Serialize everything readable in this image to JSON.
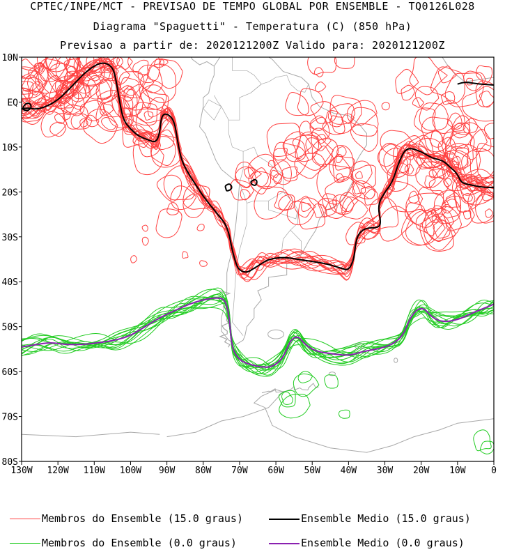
{
  "header": {
    "line1": "CPTEC/INPE/MCT - PREVISAO DE TEMPO GLOBAL POR ENSEMBLE - TQ0126L028",
    "line2": "Diagrama \"Spaguetti\" - Temperatura (C) (850 hPa)",
    "line3": "Previsao a partir de: 2020121200Z  Valido para: 2020121200Z"
  },
  "colors": {
    "members_15": "#ff4040",
    "mean_15": "#000000",
    "members_0": "#22cc22",
    "mean_0": "#8a20b0",
    "coast": "#a8a8a8"
  },
  "chart_data": {
    "type": "line",
    "title": "Diagrama \"Spaguetti\" - Temperatura (C) (850 hPa)",
    "xlim": [
      -130,
      0
    ],
    "ylim": [
      -80,
      10
    ],
    "xticks": [
      {
        "v": -130,
        "label": "130W"
      },
      {
        "v": -120,
        "label": "120W"
      },
      {
        "v": -110,
        "label": "110W"
      },
      {
        "v": -100,
        "label": "100W"
      },
      {
        "v": -90,
        "label": "90W"
      },
      {
        "v": -80,
        "label": "80W"
      },
      {
        "v": -70,
        "label": "70W"
      },
      {
        "v": -60,
        "label": "60W"
      },
      {
        "v": -50,
        "label": "50W"
      },
      {
        "v": -40,
        "label": "40W"
      },
      {
        "v": -30,
        "label": "30W"
      },
      {
        "v": -20,
        "label": "20W"
      },
      {
        "v": -10,
        "label": "10W"
      },
      {
        "v": 0,
        "label": "0"
      }
    ],
    "yticks": [
      {
        "v": 10,
        "label": "10N"
      },
      {
        "v": 0,
        "label": "EQ"
      },
      {
        "v": -10,
        "label": "10S"
      },
      {
        "v": -20,
        "label": "20S"
      },
      {
        "v": -30,
        "label": "30S"
      },
      {
        "v": -40,
        "label": "40S"
      },
      {
        "v": -50,
        "label": "50S"
      },
      {
        "v": -60,
        "label": "60S"
      },
      {
        "v": -70,
        "label": "70S"
      },
      {
        "v": -80,
        "label": "80S"
      }
    ],
    "series": [
      {
        "name": "Ensemble Medio (15.0 graus)",
        "color": "#000000",
        "points": [
          [
            -130,
            -1.5
          ],
          [
            -128,
            -1.3
          ],
          [
            -126,
            -1.6
          ],
          [
            -124,
            -1.2
          ],
          [
            -122,
            -0.5
          ],
          [
            -120,
            0.5
          ],
          [
            -118,
            2
          ],
          [
            -115,
            4.5
          ],
          [
            -112,
            7
          ],
          [
            -108,
            9
          ],
          [
            -105,
            8
          ],
          [
            -104,
            5
          ],
          [
            -103,
            0
          ],
          [
            -102,
            -4
          ],
          [
            -100,
            -6
          ],
          [
            -98,
            -7.5
          ],
          [
            -95,
            -8.5
          ],
          [
            -93,
            -9
          ],
          [
            -92,
            -7
          ],
          [
            -91.5,
            -3
          ],
          [
            -90,
            -2.5
          ],
          [
            -88,
            -4
          ],
          [
            -87,
            -9
          ],
          [
            -86,
            -13
          ],
          [
            -84,
            -16
          ],
          [
            -82,
            -18.5
          ],
          [
            -80,
            -21
          ],
          [
            -78,
            -23
          ],
          [
            -76,
            -25
          ],
          [
            -74,
            -27
          ],
          [
            -73,
            -29
          ],
          [
            -72.5,
            -31
          ],
          [
            -72,
            -33
          ],
          [
            -71,
            -36
          ],
          [
            -70,
            -37.5
          ],
          [
            -68,
            -38
          ],
          [
            -66,
            -37
          ],
          [
            -64,
            -36
          ],
          [
            -62,
            -35
          ],
          [
            -58,
            -34.5
          ],
          [
            -54,
            -35
          ],
          [
            -50,
            -35.5
          ],
          [
            -46,
            -36
          ],
          [
            -42,
            -37
          ],
          [
            -40,
            -37.5
          ],
          [
            -38.5,
            -35
          ],
          [
            -38,
            -31
          ],
          [
            -37,
            -29
          ],
          [
            -35,
            -28
          ],
          [
            -32,
            -28
          ],
          [
            -31,
            -27
          ],
          [
            -32,
            -23
          ],
          [
            -30,
            -20
          ],
          [
            -28,
            -18
          ],
          [
            -26,
            -13
          ],
          [
            -24,
            -10
          ],
          [
            -20,
            -11
          ],
          [
            -17,
            -12.5
          ],
          [
            -14,
            -13
          ],
          [
            -12,
            -14.5
          ],
          [
            -10,
            -16
          ],
          [
            -9,
            -18
          ],
          [
            -6,
            -18.5
          ],
          [
            -3,
            -19
          ],
          [
            0,
            -19
          ]
        ]
      },
      {
        "name": "Ensemble Medio (0.0 graus)",
        "color": "#8a20b0",
        "points": [
          [
            -130,
            -54.5
          ],
          [
            -126,
            -54
          ],
          [
            -122,
            -53.5
          ],
          [
            -118,
            -54
          ],
          [
            -113,
            -54
          ],
          [
            -108,
            -53.5
          ],
          [
            -104,
            -53
          ],
          [
            -100,
            -52
          ],
          [
            -96,
            -50
          ],
          [
            -92,
            -48
          ],
          [
            -88,
            -46.5
          ],
          [
            -84,
            -45
          ],
          [
            -80,
            -44
          ],
          [
            -76,
            -43.5
          ],
          [
            -74,
            -44
          ],
          [
            -73,
            -47
          ],
          [
            -72.5,
            -51
          ],
          [
            -72,
            -55
          ],
          [
            -70,
            -57.5
          ],
          [
            -67,
            -58.5
          ],
          [
            -64,
            -59
          ],
          [
            -61,
            -59
          ],
          [
            -58,
            -57
          ],
          [
            -56,
            -53
          ],
          [
            -54,
            -52
          ],
          [
            -52,
            -54
          ],
          [
            -49,
            -55.5
          ],
          [
            -45,
            -56
          ],
          [
            -40,
            -56.5
          ],
          [
            -36,
            -55.5
          ],
          [
            -32,
            -55
          ],
          [
            -28,
            -54
          ],
          [
            -25,
            -52
          ],
          [
            -23,
            -48
          ],
          [
            -21,
            -46
          ],
          [
            -19,
            -46
          ],
          [
            -17,
            -48
          ],
          [
            -14,
            -49
          ],
          [
            -10,
            -48.5
          ],
          [
            -6,
            -47
          ],
          [
            -3,
            -46
          ],
          [
            0,
            -45
          ]
        ]
      }
    ],
    "legend": [
      {
        "label": "Membros do Ensemble (15.0 graus)",
        "color": "#ff4040",
        "width": 1
      },
      {
        "label": "Ensemble Medio (15.0 graus)",
        "color": "#000000",
        "width": 2
      },
      {
        "label": "Membros do Ensemble (0.0 graus)",
        "color": "#22cc22",
        "width": 1
      },
      {
        "label": "Ensemble Medio (0.0 graus)",
        "color": "#8a20b0",
        "width": 2
      }
    ],
    "legend_position": "bottom",
    "grid": false
  }
}
